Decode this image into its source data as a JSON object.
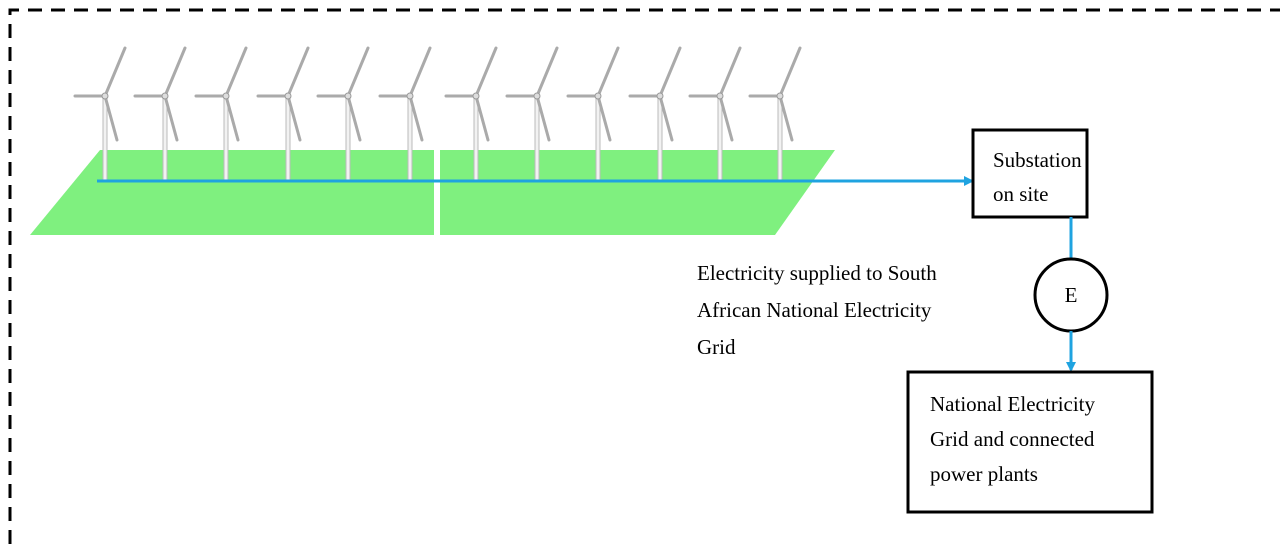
{
  "nodes": [
    {
      "label": [
        "Substation",
        "on site"
      ]
    },
    {
      "label": [
        "E"
      ]
    },
    {
      "label": [
        "National Electricity",
        "Grid and connected",
        "power plants"
      ]
    }
  ],
  "edge_label": [
    "Electricity supplied to South",
    "African National Electricity",
    "Grid"
  ]
}
